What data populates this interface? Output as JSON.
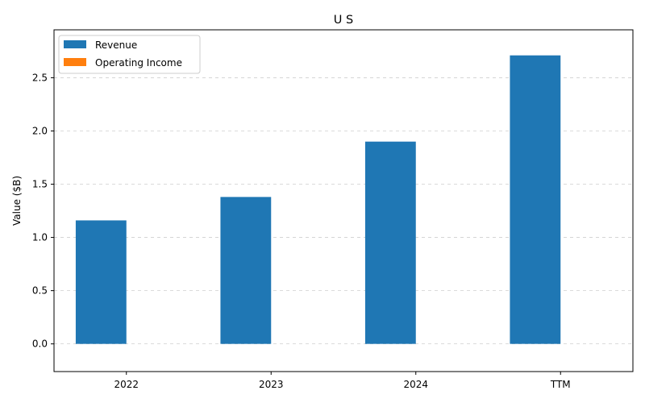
{
  "chart_data": {
    "type": "bar",
    "title": "U S",
    "xlabel": "",
    "ylabel": "Value ($B)",
    "categories": [
      "2022",
      "2023",
      "2024",
      "TTM"
    ],
    "series": [
      {
        "name": "Revenue",
        "color": "#1f77b4",
        "values": [
          1.16,
          1.38,
          1.9,
          2.71
        ]
      },
      {
        "name": "Operating Income",
        "color": "#ff7f0e",
        "values": [
          0,
          0,
          0,
          0
        ]
      }
    ],
    "ylim": [
      -0.26,
      2.95
    ],
    "yticks": [
      "0.0",
      "0.5",
      "1.0",
      "1.5",
      "2.0",
      "2.5"
    ],
    "grid": "y-dashed",
    "legend_position": "top-left"
  }
}
